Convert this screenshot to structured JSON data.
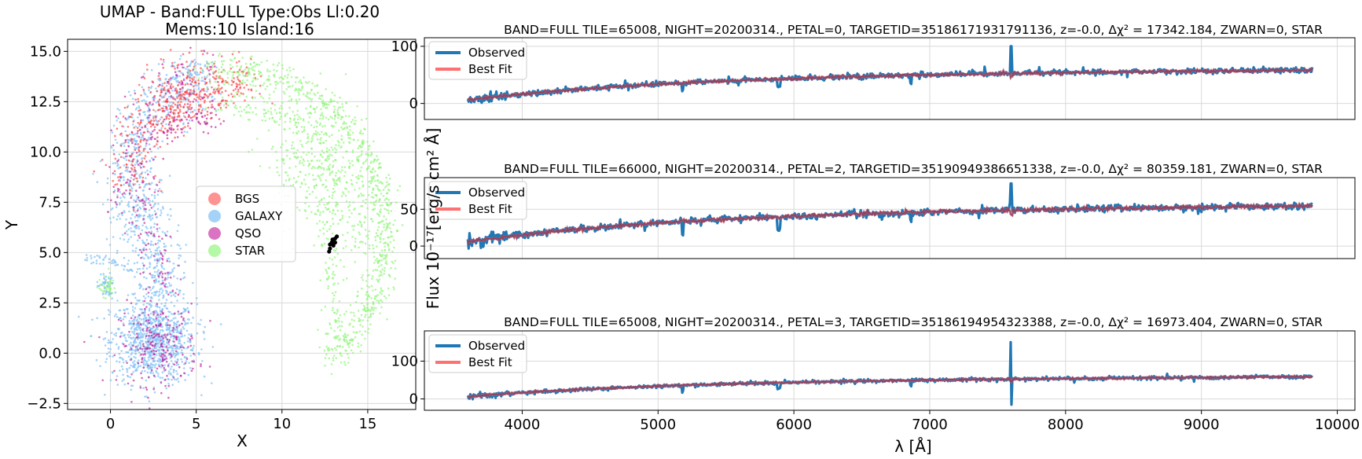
{
  "chart_data": [
    {
      "type": "scatter",
      "title": "UMAP  -  Band:FULL Type:Obs Ll:0.20",
      "subtitle": "Mems:10 Island:16",
      "xlabel": "X",
      "ylabel": "Y",
      "xlim": [
        -2.5,
        17.8
      ],
      "ylim": [
        -2.8,
        15.6
      ],
      "xticks": [
        0,
        5,
        10,
        15
      ],
      "yticks": [
        -2.5,
        0.0,
        2.5,
        5.0,
        7.5,
        10.0,
        12.5,
        15.0
      ],
      "xtick_labels": [
        "0",
        "5",
        "10",
        "15"
      ],
      "ytick_labels": [
        "−2.5",
        "0.0",
        "2.5",
        "5.0",
        "7.5",
        "10.0",
        "12.5",
        "15.0"
      ],
      "grid": true,
      "legend_position": "center-right",
      "series": [
        {
          "name": "BGS",
          "color": "#ff3b3b"
        },
        {
          "name": "GALAXY",
          "color": "#86c3f5"
        },
        {
          "name": "QSO",
          "color": "#c2189a"
        },
        {
          "name": "STAR",
          "color": "#8ef575"
        }
      ],
      "members": [
        {
          "x": 12.8,
          "y": 5.4
        },
        {
          "x": 13.0,
          "y": 5.6
        },
        {
          "x": 13.1,
          "y": 5.7
        },
        {
          "x": 13.2,
          "y": 5.8
        },
        {
          "x": 12.9,
          "y": 5.5
        },
        {
          "x": 12.8,
          "y": 5.2
        },
        {
          "x": 13.0,
          "y": 5.35
        },
        {
          "x": 12.75,
          "y": 5.05
        },
        {
          "x": 13.1,
          "y": 5.5
        },
        {
          "x": 12.95,
          "y": 5.65
        }
      ],
      "member_color": "#000000"
    },
    {
      "type": "line",
      "title": "BAND=FULL TILE=65008, NIGHT=20200314., PETAL=0, TARGETID=35186171931791136, z=-0.0, Δχ² = 17342.184, ZWARN=0, STAR",
      "xlim": [
        3280,
        10130
      ],
      "ylim": [
        -28,
        115
      ],
      "yticks": [
        0,
        100
      ],
      "ytick_labels": [
        "0",
        "100"
      ],
      "spike_height": 100,
      "spike_depth": -18,
      "grid": true,
      "legend_position": "top-left",
      "series": [
        {
          "name": "Observed",
          "color": "#1f77b4"
        },
        {
          "name": "Best Fit",
          "color": "#ff7070"
        }
      ]
    },
    {
      "type": "line",
      "title": "BAND=FULL TILE=66000, NIGHT=20200314., PETAL=2, TARGETID=35190949386651338, z=-0.0, Δχ² = 80359.181, ZWARN=0, STAR",
      "xlim": [
        3280,
        10130
      ],
      "ylim": [
        -17,
        93
      ],
      "yticks": [
        0,
        50
      ],
      "ytick_labels": [
        "0",
        "50"
      ],
      "spike_height": 85,
      "spike_depth": 30,
      "grid": true,
      "legend_position": "top-left",
      "series": [
        {
          "name": "Observed",
          "color": "#1f77b4"
        },
        {
          "name": "Best Fit",
          "color": "#ff7070"
        }
      ]
    },
    {
      "type": "line",
      "title": "BAND=FULL TILE=65008, NIGHT=20200314., PETAL=3, TARGETID=35186194954323388, z=-0.0, Δχ² = 16973.404, ZWARN=0, STAR",
      "xlim": [
        3280,
        10130
      ],
      "ylim": [
        -30,
        180
      ],
      "yticks": [
        0,
        100
      ],
      "ytick_labels": [
        "0",
        "100"
      ],
      "spike_height": 150,
      "spike_depth": -15,
      "grid": true,
      "legend_position": "top-left",
      "series": [
        {
          "name": "Observed",
          "color": "#1f77b4"
        },
        {
          "name": "Best Fit",
          "color": "#ff7070"
        }
      ]
    }
  ],
  "shared": {
    "spectra_xlabel": "λ [Å]",
    "spectra_ylabel": "Flux 10⁻¹⁷[erg/s cm² Å]",
    "xticks": [
      4000,
      5000,
      6000,
      7000,
      8000,
      9000,
      10000
    ],
    "xtick_labels": [
      "4000",
      "5000",
      "6000",
      "7000",
      "8000",
      "9000",
      "10000"
    ]
  }
}
